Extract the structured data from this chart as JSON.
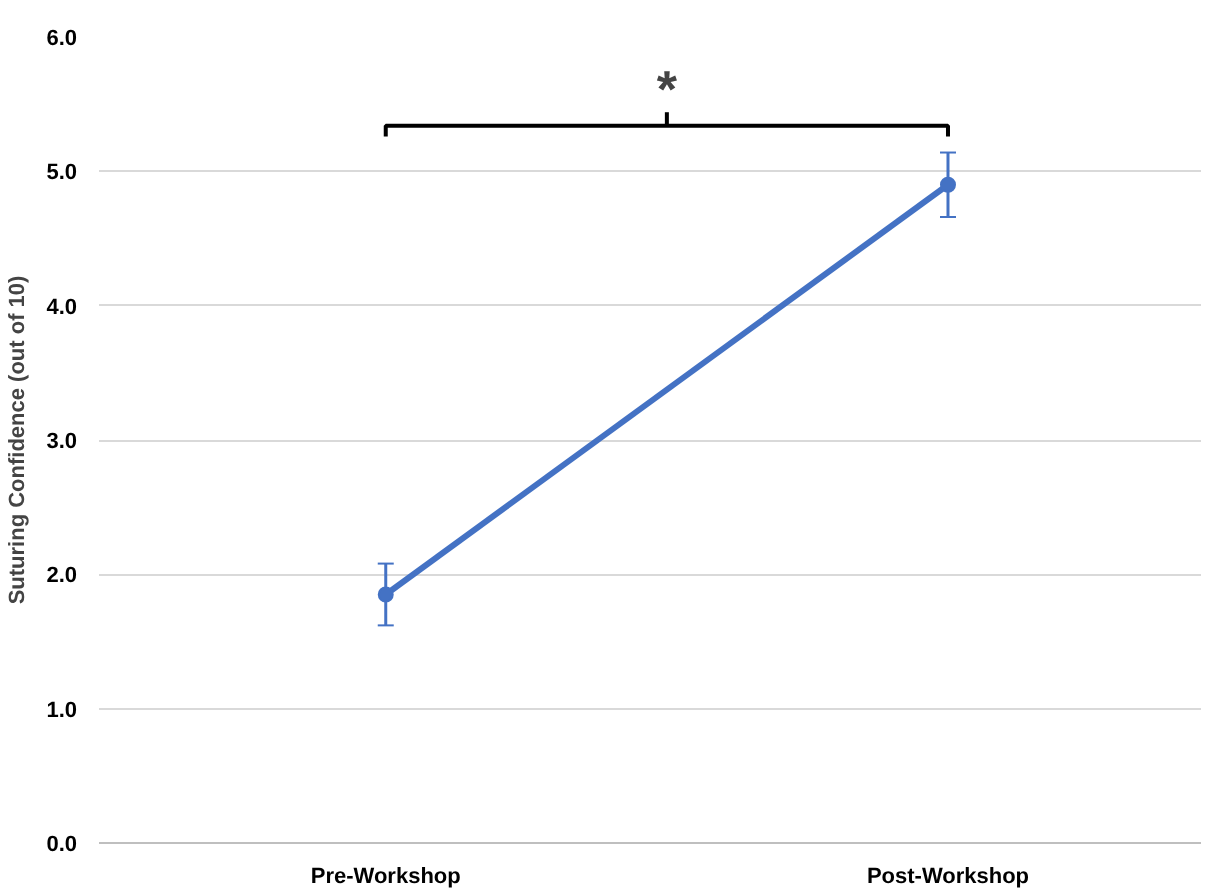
{
  "chart_data": {
    "type": "line",
    "ylabel": "Suturing Confidence (out of 10)",
    "categories": [
      "Pre-Workshop",
      "Post-Workshop"
    ],
    "series": [
      {
        "color": "#4472c4",
        "values": [
          1.85,
          4.9
        ],
        "errors": [
          0.23,
          0.24
        ]
      }
    ],
    "ylim": [
      0,
      6
    ],
    "yticks": [
      {
        "value": 0,
        "label": "0.0"
      },
      {
        "value": 1,
        "label": "1.0"
      },
      {
        "value": 2,
        "label": "2.0"
      },
      {
        "value": 3,
        "label": "3.0"
      },
      {
        "value": 4,
        "label": "4.0"
      },
      {
        "value": 5,
        "label": "5.0"
      },
      {
        "value": 6,
        "label": "6.0"
      }
    ],
    "grid": "y",
    "marker": "circle",
    "line_style": "solid",
    "annotations": [
      "*"
    ]
  }
}
